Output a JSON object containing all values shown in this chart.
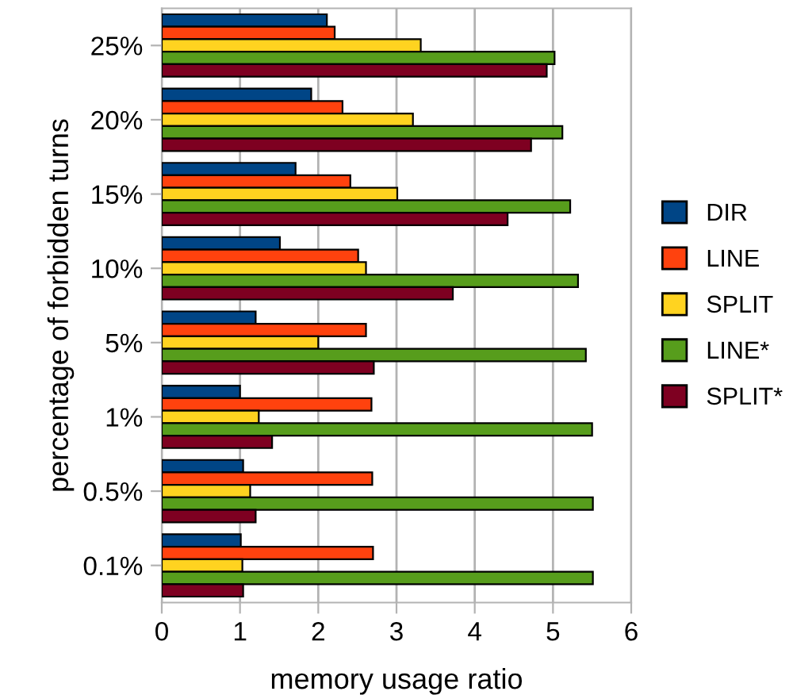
{
  "chart_data": {
    "type": "bar",
    "orientation": "horizontal",
    "xlabel": "memory usage ratio",
    "ylabel": "percentage of forbidden turns",
    "categories": [
      "25%",
      "20%",
      "15%",
      "10%",
      "5%",
      "1%",
      "0.5%",
      "0.1%"
    ],
    "series": [
      {
        "name": "DIR",
        "color": "#004586",
        "values": [
          2.11,
          1.91,
          1.71,
          1.51,
          1.2,
          1.0,
          1.04,
          1.01
        ]
      },
      {
        "name": "LINE",
        "color": "#ff420e",
        "values": [
          2.21,
          2.31,
          2.41,
          2.51,
          2.61,
          2.68,
          2.69,
          2.7
        ]
      },
      {
        "name": "SPLIT",
        "color": "#ffd320",
        "values": [
          3.31,
          3.21,
          3.01,
          2.61,
          2.0,
          1.24,
          1.13,
          1.03
        ]
      },
      {
        "name": "LINE*",
        "color": "#579d1c",
        "values": [
          5.02,
          5.12,
          5.22,
          5.32,
          5.42,
          5.5,
          5.51,
          5.51
        ]
      },
      {
        "name": "SPLIT*",
        "color": "#7e0021",
        "values": [
          4.92,
          4.72,
          4.42,
          3.72,
          2.71,
          1.41,
          1.2,
          1.04
        ]
      }
    ],
    "xlim": [
      0,
      6
    ],
    "xticks": [
      0,
      1,
      2,
      3,
      4,
      5,
      6
    ],
    "grid": "x",
    "legend": "right"
  }
}
